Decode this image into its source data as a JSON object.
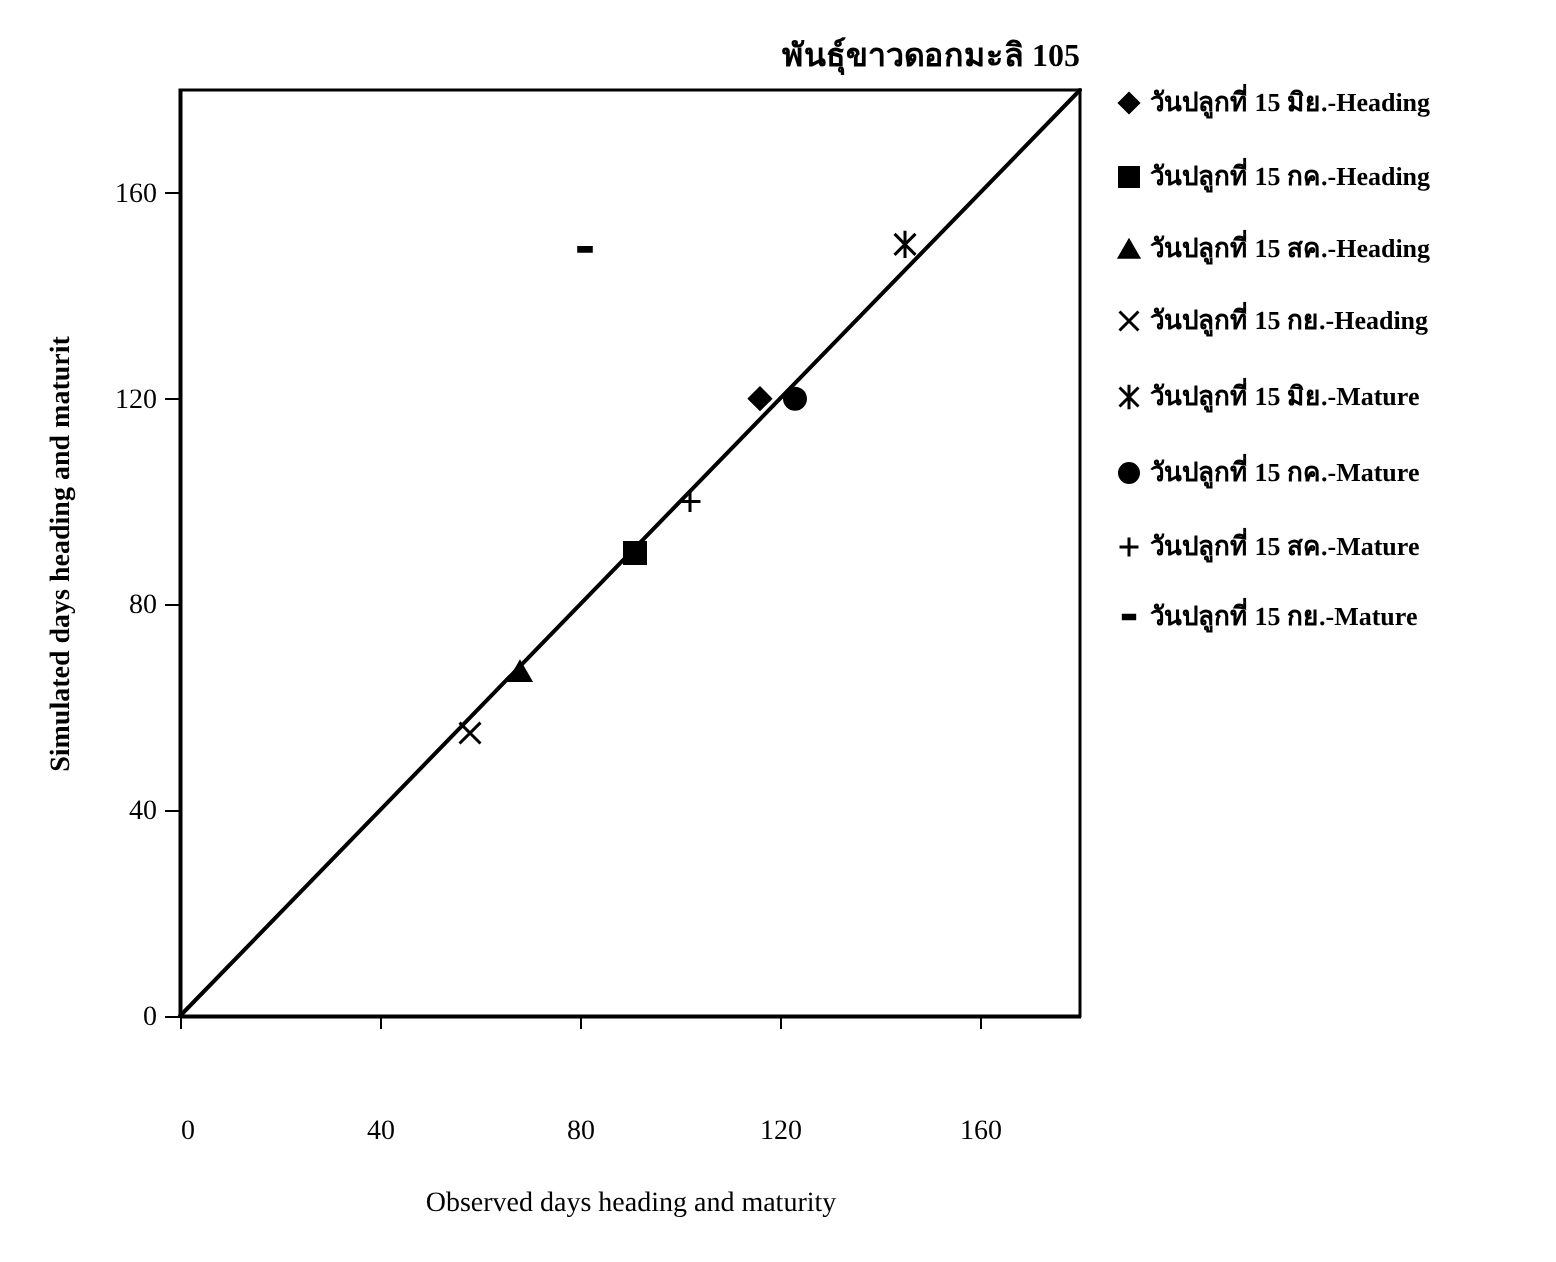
{
  "chart_data": {
    "type": "scatter",
    "title": "พันธุ์ขาวดอกมะลิ 105",
    "xlabel": "Observed days heading and maturity",
    "ylabel": "Simulated days heading and maturit",
    "xlim": [
      0,
      180
    ],
    "ylim": [
      0,
      180
    ],
    "xticks": [
      0,
      40,
      80,
      120,
      160
    ],
    "yticks": [
      0,
      40,
      80,
      120,
      160
    ],
    "legend": "right",
    "series": [
      {
        "type": "line",
        "color": "#000000",
        "x": [
          0,
          180
        ],
        "values": [
          0,
          180
        ]
      },
      {
        "name": "วันปลูกที่ 15 มิย.-Heading",
        "color": "#000000",
        "marker": "diamond",
        "x": [
          116
        ],
        "values": [
          120
        ]
      },
      {
        "name": "วันปลูกที่ 15 กค.-Heading",
        "color": "#000000",
        "marker": "square",
        "x": [
          91
        ],
        "values": [
          90
        ]
      },
      {
        "name": "วันปลูกที่ 15 สค.-Heading",
        "color": "#000000",
        "marker": "triangle",
        "x": [
          68
        ],
        "values": [
          67
        ]
      },
      {
        "name": "วันปลูกที่ 15 กย.-Heading",
        "color": "#000000",
        "marker": "cross",
        "x": [
          58
        ],
        "values": [
          55
        ]
      },
      {
        "name": "วันปลูกที่ 15 มิย.-Mature",
        "color": "#000000",
        "x": [
          145
        ],
        "values": [
          150
        ]
      },
      {
        "name": "วันปลูกที่ 15 กค.-Mature",
        "color": "#000000",
        "marker": "circle",
        "x": [
          123
        ],
        "values": [
          120
        ]
      },
      {
        "name": "วันปลูกที่ 15 สค.-Mature",
        "color": "#000000",
        "x": [
          102
        ],
        "values": [
          100
        ]
      },
      {
        "name": "วันปลูกที่ 15 กย.-Mature",
        "color": "#000000",
        "x": [
          81
        ],
        "values": [
          149
        ]
      }
    ]
  }
}
